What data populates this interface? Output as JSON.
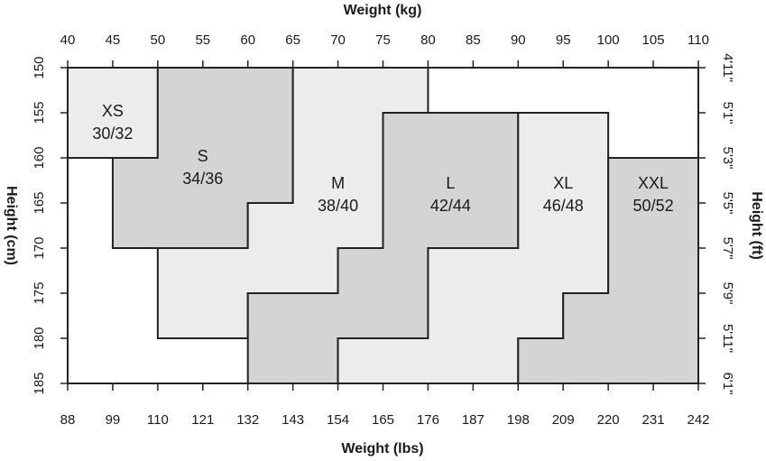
{
  "diagram": {
    "top_axis": {
      "title": "Weight (kg)",
      "ticks": [
        40,
        45,
        50,
        55,
        60,
        65,
        70,
        75,
        80,
        85,
        90,
        95,
        100,
        105,
        110
      ]
    },
    "bottom_axis": {
      "title": "Weight (lbs)",
      "ticks": [
        88,
        99,
        110,
        121,
        132,
        143,
        154,
        165,
        176,
        187,
        198,
        209,
        220,
        231,
        242
      ]
    },
    "left_axis": {
      "title": "Height (cm)",
      "ticks": [
        150,
        155,
        160,
        165,
        170,
        175,
        180,
        185
      ]
    },
    "right_axis": {
      "title": "Height (ft)",
      "ticks": [
        "4'11\"",
        "5'1\"",
        "5'3\"",
        "5'5\"",
        "5'7\"",
        "5'9\"",
        "5'11\"",
        "6'1\""
      ]
    },
    "regions": [
      {
        "name": "XS",
        "label": "30/32",
        "color": "#ececec",
        "outline": [
          [
            40,
            150
          ],
          [
            50,
            150
          ],
          [
            50,
            160
          ],
          [
            40,
            160
          ]
        ]
      },
      {
        "name": "S",
        "label": "34/36",
        "color": "#d4d4d4",
        "outline": [
          [
            50,
            150
          ],
          [
            65,
            150
          ],
          [
            65,
            165
          ],
          [
            60,
            165
          ],
          [
            60,
            170
          ],
          [
            45,
            170
          ],
          [
            45,
            160
          ],
          [
            50,
            160
          ]
        ]
      },
      {
        "name": "M",
        "label": "38/40",
        "color": "#ececec",
        "outline": [
          [
            65,
            150
          ],
          [
            80,
            150
          ],
          [
            80,
            155
          ],
          [
            75,
            155
          ],
          [
            75,
            170
          ],
          [
            70,
            170
          ],
          [
            70,
            175
          ],
          [
            60,
            175
          ],
          [
            60,
            180
          ],
          [
            50,
            180
          ],
          [
            50,
            170
          ],
          [
            60,
            170
          ],
          [
            60,
            165
          ],
          [
            65,
            165
          ]
        ]
      },
      {
        "name": "L",
        "label": "42/44",
        "color": "#d4d4d4",
        "outline": [
          [
            75,
            155
          ],
          [
            90,
            155
          ],
          [
            90,
            170
          ],
          [
            80,
            170
          ],
          [
            80,
            180
          ],
          [
            70,
            180
          ],
          [
            70,
            185
          ],
          [
            60,
            185
          ],
          [
            60,
            175
          ],
          [
            70,
            175
          ],
          [
            70,
            170
          ],
          [
            75,
            170
          ]
        ]
      },
      {
        "name": "XL",
        "label": "46/48",
        "color": "#ececec",
        "outline": [
          [
            90,
            155
          ],
          [
            100,
            155
          ],
          [
            100,
            175
          ],
          [
            95,
            175
          ],
          [
            95,
            180
          ],
          [
            90,
            180
          ],
          [
            90,
            185
          ],
          [
            70,
            185
          ],
          [
            70,
            180
          ],
          [
            80,
            180
          ],
          [
            80,
            170
          ],
          [
            90,
            170
          ]
        ]
      },
      {
        "name": "XXL",
        "label": "50/52",
        "color": "#d4d4d4",
        "outline": [
          [
            100,
            160
          ],
          [
            110,
            160
          ],
          [
            110,
            185
          ],
          [
            90,
            185
          ],
          [
            90,
            180
          ],
          [
            95,
            180
          ],
          [
            95,
            175
          ],
          [
            100,
            175
          ]
        ]
      }
    ]
  }
}
